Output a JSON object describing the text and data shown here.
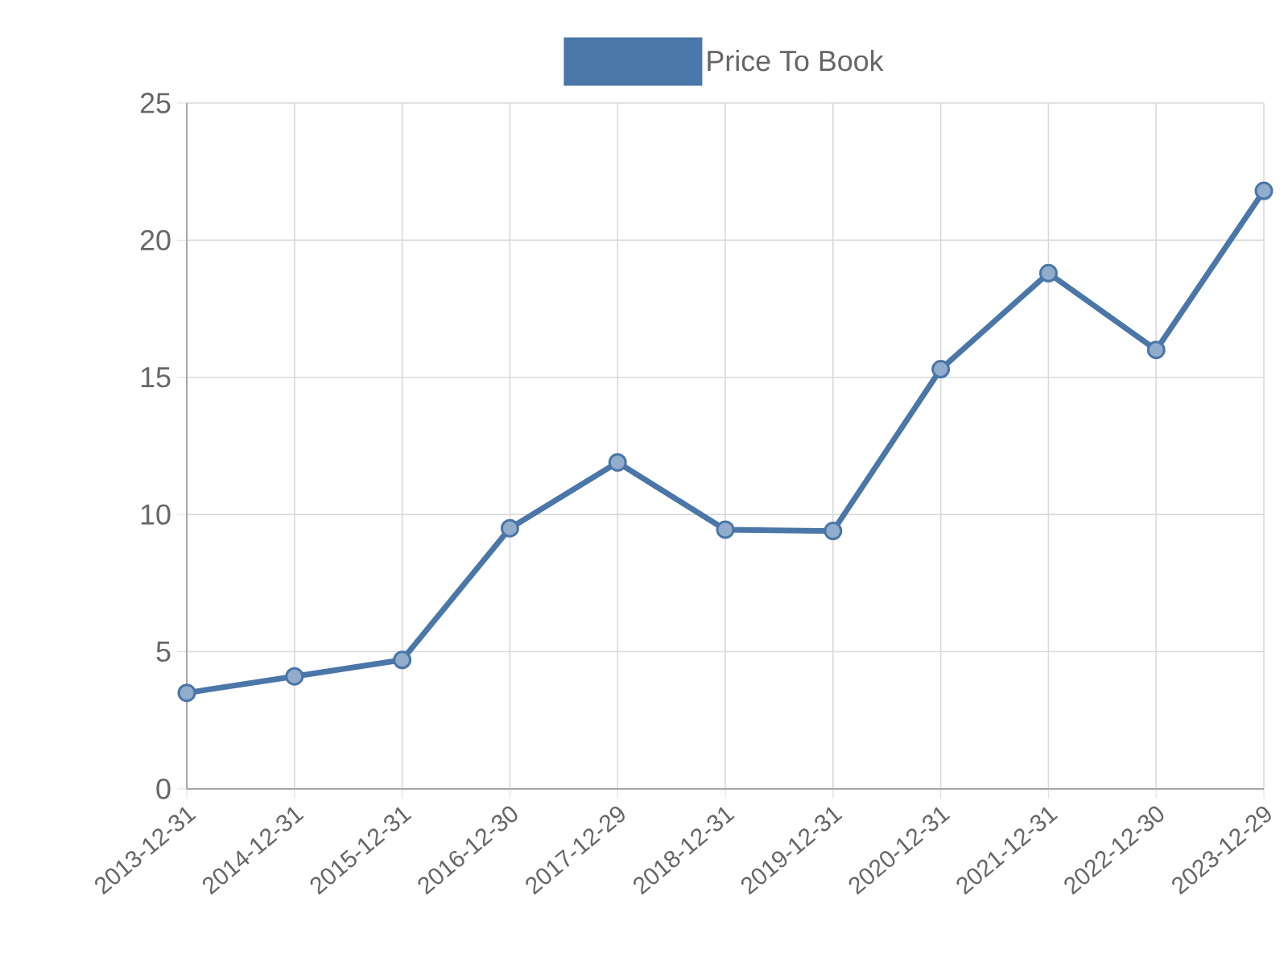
{
  "chart_data": {
    "type": "line",
    "categories": [
      "2013-12-31",
      "2014-12-31",
      "2015-12-31",
      "2016-12-30",
      "2017-12-29",
      "2018-12-31",
      "2019-12-31",
      "2020-12-31",
      "2021-12-31",
      "2022-12-30",
      "2023-12-29"
    ],
    "series": [
      {
        "name": "Price To Book",
        "color": "#4a76a8",
        "values": [
          3.5,
          4.1,
          4.7,
          9.5,
          11.9,
          9.45,
          9.4,
          15.3,
          18.8,
          16.0,
          21.8
        ]
      }
    ],
    "ylim": [
      0,
      25
    ],
    "yticks": [
      0,
      5,
      10,
      15,
      20,
      25
    ],
    "grid": true,
    "legend": "top",
    "marker": "circle",
    "line_style": "solid"
  }
}
